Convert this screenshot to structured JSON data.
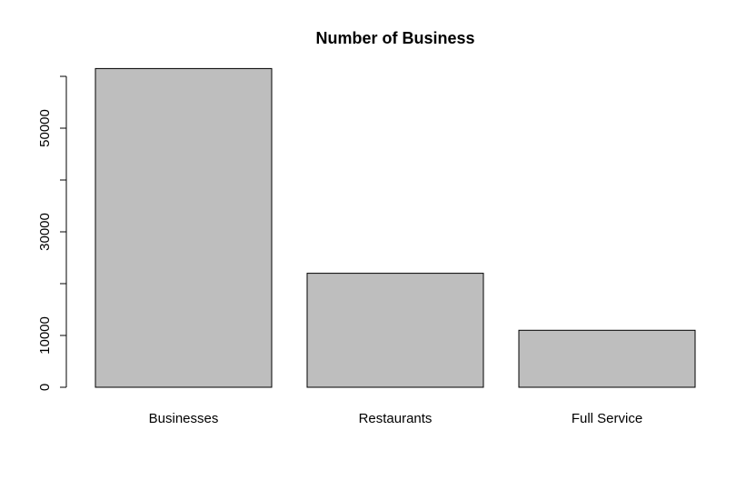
{
  "chart_data": {
    "type": "bar",
    "title": "Number of Business",
    "xlabel": "",
    "ylabel": "",
    "categories": [
      "Businesses",
      "Restaurants",
      "Full Service"
    ],
    "values": [
      61500,
      22000,
      11000
    ],
    "ylim": [
      0,
      60000
    ],
    "yticks": [
      0,
      10000,
      30000,
      50000
    ],
    "ytick_labels": [
      "0",
      "10000",
      "30000",
      "50000"
    ],
    "bar_fill": "#bebebe",
    "bar_stroke": "#000000",
    "grid": false,
    "legend": "none"
  }
}
